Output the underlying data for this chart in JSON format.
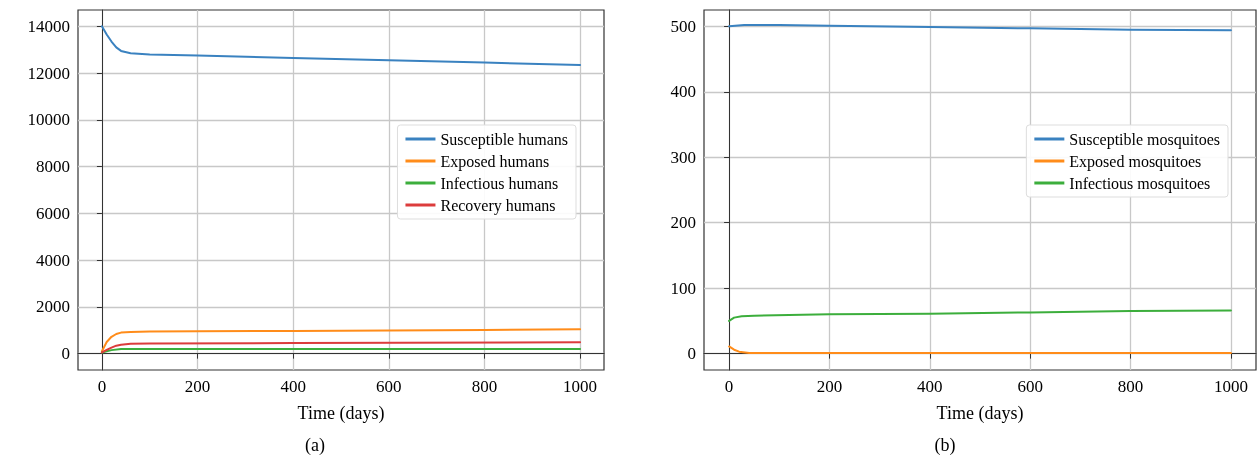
{
  "chart_data": [
    {
      "type": "line",
      "xlabel": "Time (days)",
      "annotations": [
        "(a)"
      ],
      "xlim": [
        -50,
        1050
      ],
      "xticks": [
        0,
        200,
        400,
        600,
        800,
        1000
      ],
      "ylim": [
        -700,
        14700
      ],
      "yticks": [
        0,
        2000,
        4000,
        6000,
        8000,
        10000,
        12000,
        14000
      ],
      "grid": true,
      "legend": "right",
      "marker": "none",
      "series": [
        {
          "name": "Susceptible humans",
          "color": "#3a82c0",
          "x": [
            0,
            10,
            20,
            30,
            40,
            60,
            100,
            200,
            400,
            600,
            800,
            1000
          ],
          "values": [
            14000,
            13650,
            13350,
            13100,
            12950,
            12850,
            12800,
            12750,
            12650,
            12550,
            12450,
            12350
          ]
        },
        {
          "name": "Exposed humans",
          "color": "#ff8c1a",
          "x": [
            0,
            10,
            20,
            30,
            40,
            60,
            100,
            200,
            400,
            600,
            800,
            1000
          ],
          "values": [
            100,
            500,
            720,
            840,
            900,
            930,
            950,
            960,
            970,
            990,
            1010,
            1040
          ]
        },
        {
          "name": "Infectious humans",
          "color": "#3cae3c",
          "x": [
            0,
            10,
            20,
            40,
            60,
            100,
            400,
            1000
          ],
          "values": [
            50,
            100,
            150,
            200,
            200,
            200,
            200,
            200
          ]
        },
        {
          "name": "Recovery humans",
          "color": "#dc3c3c",
          "x": [
            0,
            10,
            20,
            30,
            40,
            60,
            100,
            400,
            1000
          ],
          "values": [
            50,
            160,
            260,
            340,
            380,
            420,
            430,
            450,
            490
          ]
        }
      ]
    },
    {
      "type": "line",
      "xlabel": "Time (days)",
      "annotations": [
        "(b)"
      ],
      "xlim": [
        -50,
        1050
      ],
      "xticks": [
        0,
        200,
        400,
        600,
        800,
        1000
      ],
      "ylim": [
        -25,
        525
      ],
      "yticks": [
        0,
        100,
        200,
        300,
        400,
        500
      ],
      "grid": true,
      "legend": "right",
      "marker": "none",
      "series": [
        {
          "name": "Susceptible mosquitoes",
          "color": "#3a82c0",
          "x": [
            0,
            30,
            100,
            200,
            400,
            600,
            800,
            1000
          ],
          "values": [
            500,
            502,
            502,
            501,
            499,
            497,
            495,
            494
          ]
        },
        {
          "name": "Exposed mosquitoes",
          "color": "#ff8c1a",
          "x": [
            0,
            10,
            20,
            40,
            100,
            1000
          ],
          "values": [
            11,
            6,
            3,
            1,
            1,
            1
          ]
        },
        {
          "name": "Infectious mosquitoes",
          "color": "#3cae3c",
          "x": [
            0,
            10,
            25,
            50,
            200,
            400,
            600,
            800,
            1000
          ],
          "values": [
            50,
            55,
            57,
            58,
            60,
            61,
            63,
            65,
            66
          ]
        }
      ]
    }
  ]
}
